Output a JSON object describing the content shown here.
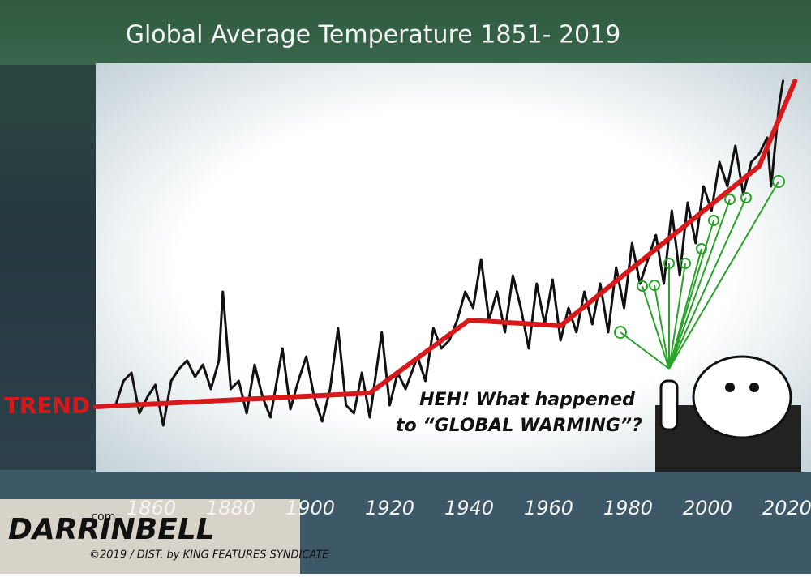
{
  "chart_data": {
    "type": "line",
    "title": "Global Average Temperature 1851- 2019",
    "trend_label": "TREND",
    "speech": [
      "HEH! What happened",
      "to “GLOBAL WARMING”?"
    ],
    "signature": "DARRINBELL",
    "signature_suffix": ".com",
    "credit": "©2019 / DIST. by KING FEATURES SYNDICATE",
    "xlim": [
      1846,
      2024
    ],
    "ylim": [
      0,
      470
    ],
    "xticks": [
      1860,
      1880,
      1900,
      1920,
      1940,
      1960,
      1980,
      2000,
      2020
    ],
    "series": [
      {
        "color": "#111111",
        "x": [
          1851,
          1853,
          1855,
          1857,
          1859,
          1861,
          1863,
          1865,
          1867,
          1869,
          1871,
          1873,
          1875,
          1877,
          1878,
          1880,
          1882,
          1884,
          1886,
          1888,
          1890,
          1893,
          1895,
          1897,
          1899,
          1901,
          1903,
          1905,
          1907,
          1909,
          1911,
          1913,
          1915,
          1918,
          1920,
          1922,
          1924,
          1927,
          1929,
          1931,
          1933,
          1935,
          1937,
          1939,
          1941,
          1943,
          1945,
          1947,
          1949,
          1951,
          1953,
          1955,
          1957,
          1959,
          1961,
          1963,
          1965,
          1967,
          1969,
          1971,
          1973,
          1975,
          1977,
          1979,
          1981,
          1983,
          1985,
          1987,
          1989,
          1991,
          1993,
          1995,
          1997,
          1999,
          2001,
          2003,
          2005,
          2007,
          2009,
          2011,
          2013,
          2015,
          2016,
          2018,
          2019
        ],
        "values": [
          60,
          90,
          100,
          50,
          70,
          85,
          35,
          90,
          105,
          115,
          95,
          110,
          80,
          115,
          200,
          80,
          90,
          50,
          110,
          70,
          45,
          130,
          55,
          90,
          120,
          70,
          40,
          80,
          155,
          60,
          50,
          100,
          45,
          150,
          60,
          100,
          80,
          120,
          90,
          155,
          130,
          140,
          165,
          200,
          180,
          240,
          165,
          200,
          150,
          220,
          180,
          130,
          210,
          160,
          215,
          140,
          180,
          150,
          200,
          160,
          210,
          150,
          230,
          180,
          260,
          210,
          240,
          270,
          210,
          300,
          220,
          310,
          260,
          330,
          300,
          360,
          330,
          380,
          320,
          360,
          370,
          390,
          330,
          430,
          460
        ]
      },
      {
        "color": "#d7191c",
        "x": [
          1846,
          1915,
          1940,
          1963,
          2013,
          2022
        ],
        "values": [
          58,
          75,
          165,
          158,
          355,
          460
        ]
      }
    ]
  }
}
